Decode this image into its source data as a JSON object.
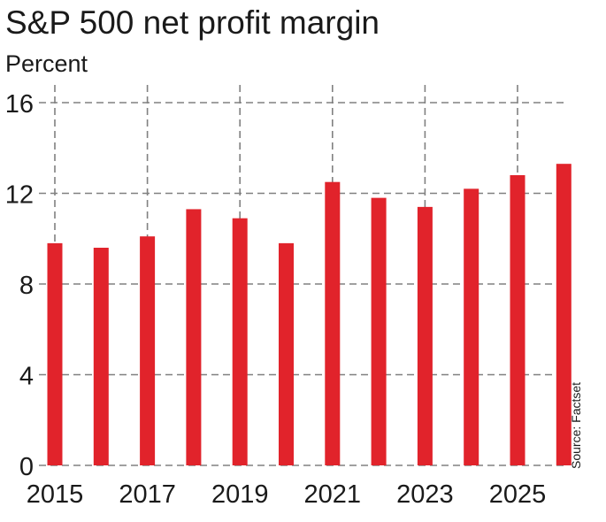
{
  "chart_data": {
    "type": "bar",
    "title": "S&P 500 net profit margin",
    "subtitle": "Percent",
    "source": "Source: Factset",
    "categories": [
      2015,
      2016,
      2017,
      2018,
      2019,
      2020,
      2021,
      2022,
      2023,
      2024,
      2025,
      2026
    ],
    "x_tick_labels": [
      "2015",
      "2017",
      "2019",
      "2021",
      "2023",
      "2025"
    ],
    "y_tick_labels": [
      "0",
      "4",
      "8",
      "12",
      "16"
    ],
    "values": [
      9.8,
      9.6,
      10.1,
      11.3,
      10.9,
      9.8,
      12.5,
      11.8,
      11.4,
      12.2,
      12.8,
      13.3
    ],
    "ylim": [
      0,
      16
    ],
    "grid": true,
    "bar_color": "#e1232b"
  }
}
